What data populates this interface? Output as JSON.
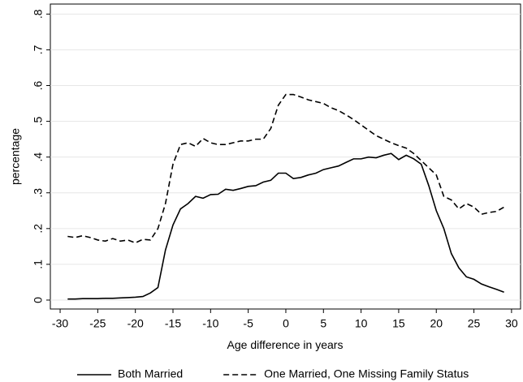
{
  "chart_data": {
    "type": "line",
    "x_label": "Age difference in years",
    "y_label": "percentage",
    "x": [
      -29,
      -28,
      -27,
      -26,
      -25,
      -24,
      -23,
      -22,
      -21,
      -20,
      -19,
      -18,
      -17,
      -16,
      -15,
      -14,
      -13,
      -12,
      -11,
      -10,
      -9,
      -8,
      -7,
      -6,
      -5,
      -4,
      -3,
      -2,
      -1,
      0,
      1,
      2,
      3,
      4,
      5,
      6,
      7,
      8,
      9,
      10,
      11,
      12,
      13,
      14,
      15,
      16,
      17,
      18,
      19,
      20,
      21,
      22,
      23,
      24,
      25,
      26,
      27,
      28,
      29
    ],
    "series": [
      {
        "name": "Both Married",
        "color": "#000000",
        "linestyle": "solid",
        "values": [
          0.003,
          0.003,
          0.004,
          0.004,
          0.004,
          0.005,
          0.005,
          0.006,
          0.007,
          0.008,
          0.01,
          0.02,
          0.035,
          0.14,
          0.21,
          0.255,
          0.27,
          0.29,
          0.285,
          0.295,
          0.296,
          0.31,
          0.307,
          0.312,
          0.318,
          0.32,
          0.33,
          0.335,
          0.355,
          0.355,
          0.34,
          0.343,
          0.35,
          0.355,
          0.365,
          0.37,
          0.375,
          0.385,
          0.395,
          0.395,
          0.4,
          0.398,
          0.405,
          0.41,
          0.393,
          0.405,
          0.395,
          0.38,
          0.32,
          0.25,
          0.2,
          0.13,
          0.09,
          0.065,
          0.058,
          0.045,
          0.037,
          0.03,
          0.022
        ]
      },
      {
        "name": "One Married, One Missing Family Status",
        "color": "#000000",
        "linestyle": "dashed",
        "values": [
          0.178,
          0.175,
          0.18,
          0.175,
          0.168,
          0.165,
          0.172,
          0.165,
          0.168,
          0.16,
          0.17,
          0.168,
          0.2,
          0.27,
          0.38,
          0.435,
          0.44,
          0.43,
          0.452,
          0.44,
          0.435,
          0.435,
          0.44,
          0.445,
          0.445,
          0.45,
          0.45,
          0.48,
          0.545,
          0.575,
          0.575,
          0.568,
          0.56,
          0.555,
          0.55,
          0.538,
          0.53,
          0.518,
          0.505,
          0.49,
          0.475,
          0.46,
          0.45,
          0.44,
          0.432,
          0.425,
          0.41,
          0.39,
          0.37,
          0.35,
          0.29,
          0.28,
          0.255,
          0.27,
          0.26,
          0.24,
          0.245,
          0.248,
          0.26
        ]
      }
    ],
    "xlim": [
      -31.3,
      31.2
    ],
    "xticks": [
      -30,
      -25,
      -20,
      -15,
      -10,
      -5,
      0,
      5,
      10,
      15,
      20,
      25,
      30
    ],
    "ylim": [
      -0.025,
      0.828
    ],
    "yticks": [
      0,
      {
        "value": 0.1,
        "label": ".1"
      },
      {
        "value": 0.2,
        "label": ".2"
      },
      {
        "value": 0.3,
        "label": ".3"
      },
      {
        "value": 0.4,
        "label": ".4"
      },
      {
        "value": 0.5,
        "label": ".5"
      },
      {
        "value": 0.6,
        "label": ".6"
      },
      {
        "value": 0.7,
        "label": ".7"
      },
      {
        "value": 0.8,
        "label": ".8"
      }
    ],
    "grid": true,
    "legend": "bottom"
  }
}
